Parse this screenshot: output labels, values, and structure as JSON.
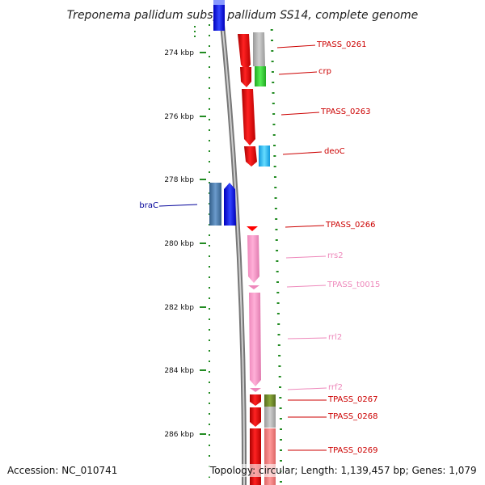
{
  "title": "Treponema pallidum subsp. pallidum SS14, complete genome",
  "accession_text": "Accession: NC_010741",
  "topology_text": "Topology: circular; Length: 1,139,457 bp; Genes: 1,079",
  "ruler": {
    "ticks": [
      {
        "kbp": 274,
        "label": "274 kbp"
      },
      {
        "kbp": 276,
        "label": "276 kbp"
      },
      {
        "kbp": 278,
        "label": "278 kbp"
      },
      {
        "kbp": 280,
        "label": "280 kbp"
      },
      {
        "kbp": 282,
        "label": "282 kbp"
      },
      {
        "kbp": 284,
        "label": "284 kbp"
      },
      {
        "kbp": 286,
        "label": "286 kbp"
      }
    ]
  },
  "colors": {
    "protein_coding": "#ff0000",
    "rna": "#ff99cc",
    "reverse_strand": "#0000ff",
    "cds_gray": "#b0b0b0",
    "cds_green": "#33cc33",
    "cds_cyan": "#22bbee",
    "cds_olive": "#6b8e23",
    "cds_salmon": "#ee7777",
    "steel_blue": "#4477aa",
    "tick_green": "#228b22",
    "label_red": "#cc0000",
    "label_pink": "#ee88bb",
    "label_blue": "#000099"
  },
  "genes": [
    {
      "name": "TPASS_0261",
      "color_key": "label_red"
    },
    {
      "name": "crp",
      "color_key": "label_red"
    },
    {
      "name": "TPASS_0263",
      "color_key": "label_red"
    },
    {
      "name": "deoC",
      "color_key": "label_red"
    },
    {
      "name": "braC",
      "color_key": "label_blue"
    },
    {
      "name": "TPASS_0266",
      "color_key": "label_red"
    },
    {
      "name": "rrs2",
      "color_key": "label_pink"
    },
    {
      "name": "TPASS_t0015",
      "color_key": "label_pink"
    },
    {
      "name": "rrl2",
      "color_key": "label_pink"
    },
    {
      "name": "rrf2",
      "color_key": "label_pink"
    },
    {
      "name": "TPASS_0267",
      "color_key": "label_red"
    },
    {
      "name": "TPASS_0268",
      "color_key": "label_red"
    },
    {
      "name": "TPASS_0269",
      "color_key": "label_red"
    }
  ]
}
